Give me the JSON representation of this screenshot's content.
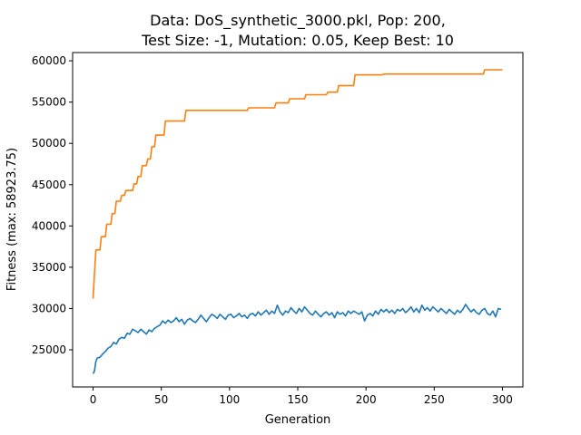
{
  "chart_data": {
    "type": "line",
    "title_line1": "Data: DoS_synthetic_3000.pkl, Pop: 200,",
    "title_line2": "Test Size: -1, Mutation: 0.05, Keep Best: 10",
    "xlabel": "Generation",
    "ylabel": "Fitness (max: 58923.75)",
    "xlim": [
      -15,
      315
    ],
    "ylim": [
      20500,
      61000
    ],
    "xticks": [
      0,
      50,
      100,
      150,
      200,
      250,
      300
    ],
    "yticks": [
      25000,
      30000,
      35000,
      40000,
      45000,
      50000,
      55000,
      60000
    ],
    "grid": false,
    "series": [
      {
        "color": "#1f77b4",
        "points": [
          [
            0,
            22100
          ],
          [
            1,
            22400
          ],
          [
            2,
            23600
          ],
          [
            3,
            24000
          ],
          [
            5,
            24100
          ],
          [
            7,
            24500
          ],
          [
            9,
            24800
          ],
          [
            11,
            25200
          ],
          [
            13,
            25400
          ],
          [
            15,
            25900
          ],
          [
            17,
            25700
          ],
          [
            19,
            26300
          ],
          [
            21,
            26500
          ],
          [
            23,
            26400
          ],
          [
            25,
            27000
          ],
          [
            27,
            26900
          ],
          [
            29,
            27500
          ],
          [
            31,
            27300
          ],
          [
            33,
            27100
          ],
          [
            35,
            27500
          ],
          [
            37,
            27200
          ],
          [
            39,
            26900
          ],
          [
            41,
            27400
          ],
          [
            43,
            27200
          ],
          [
            45,
            27600
          ],
          [
            47,
            27800
          ],
          [
            49,
            28000
          ],
          [
            51,
            28500
          ],
          [
            53,
            28200
          ],
          [
            55,
            28600
          ],
          [
            57,
            28300
          ],
          [
            59,
            28500
          ],
          [
            61,
            28900
          ],
          [
            63,
            28400
          ],
          [
            65,
            28700
          ],
          [
            67,
            28100
          ],
          [
            69,
            28600
          ],
          [
            71,
            28800
          ],
          [
            73,
            28500
          ],
          [
            75,
            28300
          ],
          [
            77,
            28700
          ],
          [
            79,
            29200
          ],
          [
            81,
            28800
          ],
          [
            83,
            28400
          ],
          [
            85,
            28900
          ],
          [
            87,
            29300
          ],
          [
            89,
            29100
          ],
          [
            91,
            28800
          ],
          [
            93,
            29300
          ],
          [
            95,
            29000
          ],
          [
            97,
            28700
          ],
          [
            99,
            29200
          ],
          [
            101,
            29300
          ],
          [
            103,
            28900
          ],
          [
            105,
            29100
          ],
          [
            107,
            29400
          ],
          [
            109,
            29000
          ],
          [
            111,
            29200
          ],
          [
            113,
            28800
          ],
          [
            115,
            29300
          ],
          [
            117,
            29400
          ],
          [
            119,
            29100
          ],
          [
            121,
            29600
          ],
          [
            123,
            29200
          ],
          [
            125,
            29500
          ],
          [
            127,
            29800
          ],
          [
            129,
            29300
          ],
          [
            131,
            29700
          ],
          [
            133,
            29400
          ],
          [
            135,
            30400
          ],
          [
            137,
            29600
          ],
          [
            139,
            29200
          ],
          [
            141,
            29700
          ],
          [
            143,
            29500
          ],
          [
            145,
            30100
          ],
          [
            147,
            29700
          ],
          [
            149,
            29400
          ],
          [
            151,
            30000
          ],
          [
            153,
            29600
          ],
          [
            155,
            30200
          ],
          [
            157,
            29800
          ],
          [
            159,
            29400
          ],
          [
            161,
            29200
          ],
          [
            163,
            29700
          ],
          [
            165,
            29300
          ],
          [
            167,
            29000
          ],
          [
            169,
            29400
          ],
          [
            171,
            29600
          ],
          [
            173,
            29200
          ],
          [
            175,
            29500
          ],
          [
            177,
            28900
          ],
          [
            179,
            29600
          ],
          [
            181,
            29300
          ],
          [
            183,
            29500
          ],
          [
            185,
            29100
          ],
          [
            187,
            29700
          ],
          [
            189,
            29400
          ],
          [
            191,
            29700
          ],
          [
            193,
            29500
          ],
          [
            195,
            29300
          ],
          [
            197,
            29600
          ],
          [
            199,
            28500
          ],
          [
            201,
            29200
          ],
          [
            203,
            29400
          ],
          [
            205,
            29100
          ],
          [
            207,
            29700
          ],
          [
            209,
            29300
          ],
          [
            211,
            29900
          ],
          [
            213,
            29600
          ],
          [
            215,
            29900
          ],
          [
            217,
            29500
          ],
          [
            219,
            29800
          ],
          [
            221,
            29400
          ],
          [
            223,
            29900
          ],
          [
            225,
            29700
          ],
          [
            227,
            30000
          ],
          [
            229,
            29500
          ],
          [
            231,
            29800
          ],
          [
            233,
            30200
          ],
          [
            235,
            29600
          ],
          [
            237,
            30000
          ],
          [
            239,
            29500
          ],
          [
            241,
            30400
          ],
          [
            243,
            29800
          ],
          [
            245,
            30100
          ],
          [
            247,
            29700
          ],
          [
            249,
            30200
          ],
          [
            251,
            29900
          ],
          [
            253,
            29600
          ],
          [
            255,
            30000
          ],
          [
            257,
            29700
          ],
          [
            259,
            29400
          ],
          [
            261,
            29900
          ],
          [
            263,
            29600
          ],
          [
            265,
            29300
          ],
          [
            267,
            29800
          ],
          [
            269,
            29500
          ],
          [
            271,
            29900
          ],
          [
            273,
            30500
          ],
          [
            275,
            30000
          ],
          [
            277,
            29600
          ],
          [
            279,
            29900
          ],
          [
            281,
            29500
          ],
          [
            283,
            29300
          ],
          [
            285,
            29800
          ],
          [
            287,
            30000
          ],
          [
            289,
            29400
          ],
          [
            291,
            29200
          ],
          [
            293,
            29700
          ],
          [
            295,
            29000
          ],
          [
            297,
            30000
          ],
          [
            299,
            29900
          ]
        ]
      },
      {
        "color": "#ff7f0e",
        "points": [
          [
            0,
            31200
          ],
          [
            2,
            37100
          ],
          [
            5,
            37100
          ],
          [
            6,
            38700
          ],
          [
            9,
            38700
          ],
          [
            10,
            40200
          ],
          [
            13,
            40200
          ],
          [
            14,
            41500
          ],
          [
            16,
            41500
          ],
          [
            17,
            43000
          ],
          [
            20,
            43000
          ],
          [
            21,
            43700
          ],
          [
            23,
            43700
          ],
          [
            24,
            44300
          ],
          [
            29,
            44300
          ],
          [
            30,
            45100
          ],
          [
            32,
            45100
          ],
          [
            33,
            46000
          ],
          [
            35,
            46000
          ],
          [
            36,
            47300
          ],
          [
            39,
            47300
          ],
          [
            40,
            48100
          ],
          [
            42,
            48100
          ],
          [
            43,
            49600
          ],
          [
            45,
            49600
          ],
          [
            46,
            51000
          ],
          [
            52,
            51000
          ],
          [
            53,
            52700
          ],
          [
            67,
            52700
          ],
          [
            68,
            54000
          ],
          [
            113,
            54000
          ],
          [
            114,
            54300
          ],
          [
            133,
            54300
          ],
          [
            134,
            54900
          ],
          [
            143,
            54900
          ],
          [
            144,
            55400
          ],
          [
            155,
            55400
          ],
          [
            156,
            55900
          ],
          [
            171,
            55900
          ],
          [
            172,
            56200
          ],
          [
            179,
            56200
          ],
          [
            180,
            57000
          ],
          [
            191,
            57000
          ],
          [
            192,
            58300
          ],
          [
            212,
            58300
          ],
          [
            213,
            58400
          ],
          [
            286,
            58400
          ],
          [
            287,
            58920
          ],
          [
            300,
            58920
          ]
        ]
      }
    ]
  }
}
